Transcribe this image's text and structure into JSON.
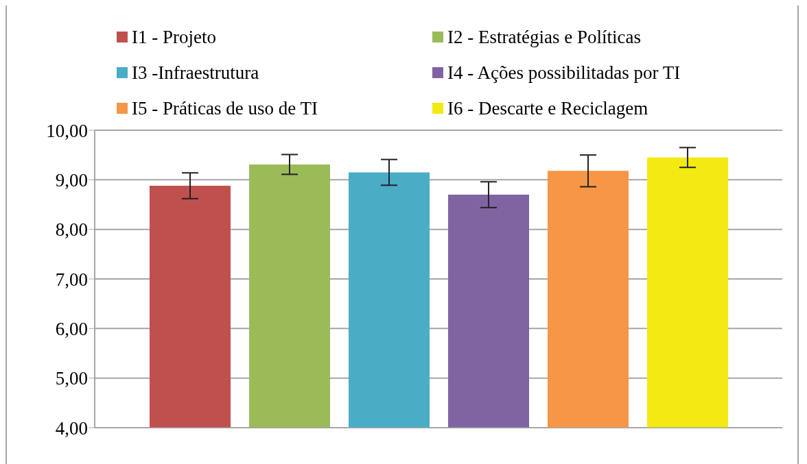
{
  "chart_data": {
    "type": "bar",
    "categories": [
      null
    ],
    "series": [
      {
        "name": "I1 - Projeto",
        "color": "#c0504d",
        "values": [
          8.88
        ],
        "errors": [
          0.26
        ]
      },
      {
        "name": "I2 - Estratégias e Políticas",
        "color": "#9bbb59",
        "values": [
          9.31
        ],
        "errors": [
          0.2
        ]
      },
      {
        "name": "I3 -Infraestrutura",
        "color": "#4bacc6",
        "values": [
          9.15
        ],
        "errors": [
          0.26
        ]
      },
      {
        "name": "I4 - Ações possibilitadas por TI",
        "color": "#8064a2",
        "values": [
          8.7
        ],
        "errors": [
          0.26
        ]
      },
      {
        "name": "I5 - Práticas de uso de TI",
        "color": "#f79646",
        "values": [
          9.18
        ],
        "errors": [
          0.32
        ]
      },
      {
        "name": "I6 - Descarte e Reciclagem",
        "color": "#f2ea12",
        "values": [
          9.45
        ],
        "errors": [
          0.2
        ]
      }
    ],
    "ylim": [
      4,
      10
    ],
    "yticks": [
      {
        "value": 4,
        "label": "4,00"
      },
      {
        "value": 5,
        "label": "5,00"
      },
      {
        "value": 6,
        "label": "6,00"
      },
      {
        "value": 7,
        "label": "7,00"
      },
      {
        "value": 8,
        "label": "8,00"
      },
      {
        "value": 9,
        "label": "9,00"
      },
      {
        "value": 10,
        "label": "10,00"
      }
    ],
    "grid": "y",
    "legend": "top"
  }
}
